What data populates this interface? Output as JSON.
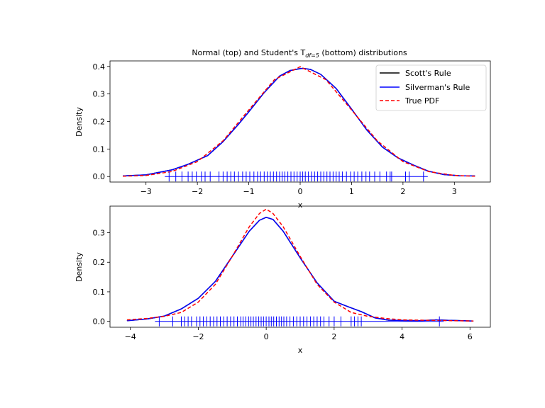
{
  "chart_data": [
    {
      "type": "line",
      "title_main": "Normal (top) and Student's T",
      "title_sub": "df=5",
      "title_tail": " (bottom) distributions",
      "xlabel": "x",
      "ylabel": "Density",
      "xlim": [
        -3.7,
        3.7
      ],
      "ylim": [
        -0.02,
        0.42
      ],
      "xticks": [
        -3,
        -2,
        -1,
        0,
        1,
        2,
        3
      ],
      "yticks": [
        0.0,
        0.1,
        0.2,
        0.3,
        0.4
      ],
      "legend": [
        "Scott's Rule",
        "Silverman's Rule",
        "True PDF"
      ],
      "legend_position": "top-right",
      "series": [
        {
          "name": "Scott's Rule",
          "color": "#000000",
          "style": "solid",
          "x": [
            -3.45,
            -3.0,
            -2.5,
            -2.2,
            -1.8,
            -1.5,
            -1.2,
            -1.0,
            -0.7,
            -0.4,
            -0.2,
            0.0,
            0.05,
            0.2,
            0.4,
            0.7,
            1.0,
            1.3,
            1.6,
            1.9,
            2.2,
            2.5,
            2.8,
            3.1,
            3.4
          ],
          "y": [
            0.002,
            0.006,
            0.024,
            0.043,
            0.076,
            0.127,
            0.19,
            0.235,
            0.305,
            0.365,
            0.385,
            0.392,
            0.393,
            0.389,
            0.371,
            0.32,
            0.245,
            0.168,
            0.107,
            0.068,
            0.042,
            0.019,
            0.007,
            0.003,
            0.002
          ]
        },
        {
          "name": "Silverman's Rule",
          "color": "#0000ff",
          "style": "solid",
          "x": [
            -3.45,
            -3.0,
            -2.5,
            -2.2,
            -1.8,
            -1.5,
            -1.2,
            -1.0,
            -0.7,
            -0.4,
            -0.2,
            0.0,
            0.05,
            0.2,
            0.4,
            0.7,
            1.0,
            1.3,
            1.6,
            1.9,
            2.2,
            2.5,
            2.8,
            3.1,
            3.4
          ],
          "y": [
            0.002,
            0.006,
            0.024,
            0.043,
            0.076,
            0.127,
            0.19,
            0.235,
            0.305,
            0.365,
            0.385,
            0.392,
            0.393,
            0.389,
            0.371,
            0.32,
            0.245,
            0.168,
            0.107,
            0.068,
            0.042,
            0.019,
            0.007,
            0.003,
            0.002
          ]
        },
        {
          "name": "True PDF",
          "color": "#ff0000",
          "style": "dashed",
          "x": [
            -3.45,
            -3.0,
            -2.5,
            -2.0,
            -1.5,
            -1.0,
            -0.5,
            0.0,
            0.5,
            1.0,
            1.5,
            2.0,
            2.5,
            3.0,
            3.4
          ],
          "y": [
            0.001,
            0.004,
            0.018,
            0.054,
            0.13,
            0.242,
            0.352,
            0.399,
            0.352,
            0.242,
            0.13,
            0.054,
            0.018,
            0.004,
            0.001
          ]
        }
      ],
      "rug": [
        -2.55,
        -2.42,
        -2.3,
        -2.18,
        -2.1,
        -2.02,
        -1.92,
        -1.85,
        -1.75,
        -1.58,
        -1.5,
        -1.42,
        -1.35,
        -1.28,
        -1.2,
        -1.12,
        -1.05,
        -0.98,
        -0.9,
        -0.83,
        -0.77,
        -0.7,
        -0.64,
        -0.58,
        -0.52,
        -0.46,
        -0.4,
        -0.35,
        -0.3,
        -0.24,
        -0.18,
        -0.12,
        -0.06,
        0.0,
        0.05,
        0.1,
        0.16,
        0.22,
        0.28,
        0.34,
        0.4,
        0.46,
        0.52,
        0.58,
        0.64,
        0.7,
        0.76,
        0.82,
        0.9,
        0.98,
        1.05,
        1.12,
        1.2,
        1.28,
        1.35,
        1.45,
        1.55,
        1.68,
        1.75,
        1.78,
        2.05,
        2.12,
        2.4
      ],
      "rug_color": "#0000ff"
    },
    {
      "type": "line",
      "xlabel": "x",
      "ylabel": "Density",
      "xlim": [
        -4.6,
        6.6
      ],
      "ylim": [
        -0.02,
        0.39
      ],
      "xticks": [
        -4,
        -2,
        0,
        2,
        4,
        6
      ],
      "yticks": [
        0.0,
        0.1,
        0.2,
        0.3
      ],
      "series": [
        {
          "name": "Scott's Rule",
          "color": "#000000",
          "style": "solid",
          "x": [
            -4.1,
            -3.5,
            -3.0,
            -2.5,
            -2.0,
            -1.5,
            -1.0,
            -0.5,
            -0.2,
            0.0,
            0.2,
            0.5,
            1.0,
            1.5,
            2.0,
            2.4,
            2.8,
            3.2,
            3.6,
            4.0,
            4.5,
            5.0,
            5.5,
            6.1
          ],
          "y": [
            0.002,
            0.008,
            0.018,
            0.042,
            0.078,
            0.135,
            0.22,
            0.305,
            0.342,
            0.352,
            0.345,
            0.305,
            0.215,
            0.13,
            0.068,
            0.05,
            0.033,
            0.012,
            0.004,
            0.003,
            0.002,
            0.005,
            0.003,
            0.001
          ]
        },
        {
          "name": "Silverman's Rule",
          "color": "#0000ff",
          "style": "solid",
          "x": [
            -4.1,
            -3.5,
            -3.0,
            -2.5,
            -2.0,
            -1.5,
            -1.0,
            -0.5,
            -0.2,
            0.0,
            0.2,
            0.5,
            1.0,
            1.5,
            2.0,
            2.4,
            2.8,
            3.2,
            3.6,
            4.0,
            4.5,
            5.0,
            5.5,
            6.1
          ],
          "y": [
            0.002,
            0.008,
            0.018,
            0.042,
            0.078,
            0.135,
            0.22,
            0.305,
            0.342,
            0.352,
            0.345,
            0.305,
            0.215,
            0.13,
            0.068,
            0.05,
            0.033,
            0.012,
            0.004,
            0.003,
            0.002,
            0.005,
            0.003,
            0.001
          ]
        },
        {
          "name": "True PDF",
          "color": "#ff0000",
          "style": "dashed",
          "x": [
            -4.1,
            -3.5,
            -3.0,
            -2.5,
            -2.0,
            -1.5,
            -1.0,
            -0.5,
            -0.2,
            0.0,
            0.2,
            0.5,
            1.0,
            1.5,
            2.0,
            2.5,
            3.0,
            3.5,
            4.0,
            5.0,
            6.1
          ],
          "y": [
            0.005,
            0.01,
            0.017,
            0.03,
            0.065,
            0.125,
            0.22,
            0.32,
            0.365,
            0.38,
            0.365,
            0.32,
            0.22,
            0.125,
            0.065,
            0.03,
            0.017,
            0.01,
            0.005,
            0.003,
            0.001
          ]
        }
      ],
      "rug": [
        -3.15,
        -2.75,
        -2.5,
        -2.4,
        -2.3,
        -2.2,
        -2.05,
        -1.95,
        -1.85,
        -1.75,
        -1.65,
        -1.55,
        -1.45,
        -1.35,
        -1.25,
        -1.15,
        -1.05,
        -0.95,
        -0.85,
        -0.75,
        -0.68,
        -0.6,
        -0.52,
        -0.45,
        -0.38,
        -0.3,
        -0.22,
        -0.15,
        -0.08,
        0.0,
        0.08,
        0.15,
        0.22,
        0.3,
        0.38,
        0.45,
        0.52,
        0.6,
        0.7,
        0.8,
        0.9,
        1.0,
        1.1,
        1.2,
        1.3,
        1.4,
        1.5,
        1.6,
        1.7,
        1.85,
        2.0,
        2.2,
        2.5,
        2.6,
        2.7,
        2.8,
        5.1
      ],
      "rug_color": "#0000ff"
    }
  ]
}
